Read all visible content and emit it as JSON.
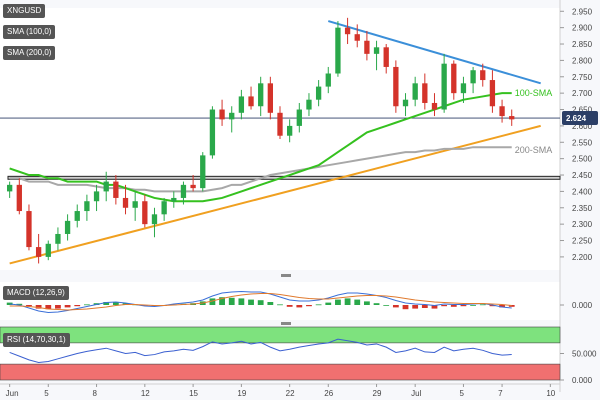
{
  "chart_data": {
    "type": "candlestick",
    "title": "",
    "panels": {
      "price": {
        "ylim": [
          2.16,
          2.96
        ],
        "y_ticks": [
          2.2,
          2.25,
          2.3,
          2.35,
          2.4,
          2.45,
          2.5,
          2.55,
          2.6,
          2.65,
          2.7,
          2.75,
          2.8,
          2.85,
          2.9
        ],
        "y_tick_labels": [
          "2.200",
          "2.250",
          "2.300",
          "2.350",
          "2.400",
          "2.450",
          "2.500",
          "2.550",
          "2.600",
          "2.650",
          "2.700",
          "2.750",
          "2.800",
          "2.850",
          "2.900",
          "2.950"
        ],
        "y_tick_values": [
          2.2,
          2.25,
          2.3,
          2.35,
          2.4,
          2.45,
          2.5,
          2.55,
          2.6,
          2.65,
          2.7,
          2.75,
          2.8,
          2.85,
          2.9,
          2.95
        ],
        "last_price": 2.624,
        "last_price_label": "2.624",
        "support_zone": [
          2.437,
          2.446
        ],
        "candles": [
          [
            2.4,
            2.43,
            2.38,
            2.42
          ],
          [
            2.42,
            2.44,
            2.33,
            2.34
          ],
          [
            2.34,
            2.36,
            2.22,
            2.23
          ],
          [
            2.23,
            2.27,
            2.18,
            2.2
          ],
          [
            2.2,
            2.25,
            2.19,
            2.24
          ],
          [
            2.24,
            2.29,
            2.22,
            2.27
          ],
          [
            2.27,
            2.33,
            2.25,
            2.31
          ],
          [
            2.31,
            2.36,
            2.29,
            2.34
          ],
          [
            2.34,
            2.39,
            2.31,
            2.37
          ],
          [
            2.37,
            2.42,
            2.34,
            2.4
          ],
          [
            2.4,
            2.46,
            2.37,
            2.43
          ],
          [
            2.43,
            2.45,
            2.36,
            2.38
          ],
          [
            2.38,
            2.42,
            2.33,
            2.35
          ],
          [
            2.35,
            2.4,
            2.31,
            2.37
          ],
          [
            2.37,
            2.39,
            2.29,
            2.3
          ],
          [
            2.3,
            2.35,
            2.26,
            2.33
          ],
          [
            2.33,
            2.38,
            2.31,
            2.37
          ],
          [
            2.37,
            2.4,
            2.35,
            2.38
          ],
          [
            2.38,
            2.43,
            2.36,
            2.42
          ],
          [
            2.42,
            2.45,
            2.4,
            2.41
          ],
          [
            2.41,
            2.52,
            2.4,
            2.51
          ],
          [
            2.51,
            2.66,
            2.5,
            2.65
          ],
          [
            2.65,
            2.68,
            2.6,
            2.62
          ],
          [
            2.62,
            2.66,
            2.58,
            2.64
          ],
          [
            2.64,
            2.71,
            2.62,
            2.69
          ],
          [
            2.69,
            2.72,
            2.65,
            2.66
          ],
          [
            2.66,
            2.75,
            2.63,
            2.73
          ],
          [
            2.73,
            2.75,
            2.62,
            2.64
          ],
          [
            2.64,
            2.66,
            2.56,
            2.57
          ],
          [
            2.57,
            2.62,
            2.55,
            2.6
          ],
          [
            2.6,
            2.67,
            2.58,
            2.65
          ],
          [
            2.65,
            2.7,
            2.63,
            2.68
          ],
          [
            2.68,
            2.74,
            2.66,
            2.72
          ],
          [
            2.72,
            2.78,
            2.7,
            2.76
          ],
          [
            2.76,
            2.92,
            2.75,
            2.9
          ],
          [
            2.9,
            2.93,
            2.85,
            2.88
          ],
          [
            2.88,
            2.91,
            2.84,
            2.86
          ],
          [
            2.86,
            2.89,
            2.8,
            2.82
          ],
          [
            2.82,
            2.86,
            2.77,
            2.84
          ],
          [
            2.84,
            2.85,
            2.76,
            2.78
          ],
          [
            2.78,
            2.8,
            2.64,
            2.66
          ],
          [
            2.66,
            2.7,
            2.63,
            2.68
          ],
          [
            2.68,
            2.75,
            2.66,
            2.73
          ],
          [
            2.73,
            2.76,
            2.65,
            2.67
          ],
          [
            2.67,
            2.7,
            2.63,
            2.65
          ],
          [
            2.65,
            2.82,
            2.64,
            2.79
          ],
          [
            2.79,
            2.8,
            2.68,
            2.7
          ],
          [
            2.7,
            2.75,
            2.67,
            2.73
          ],
          [
            2.73,
            2.78,
            2.7,
            2.77
          ],
          [
            2.77,
            2.79,
            2.72,
            2.74
          ],
          [
            2.74,
            2.77,
            2.64,
            2.66
          ],
          [
            2.66,
            2.68,
            2.61,
            2.63
          ],
          [
            2.63,
            2.65,
            2.6,
            2.62
          ]
        ],
        "sma100": [
          2.47,
          2.46,
          2.45,
          2.45,
          2.44,
          2.44,
          2.43,
          2.43,
          2.43,
          2.43,
          2.42,
          2.42,
          2.41,
          2.4,
          2.39,
          2.38,
          2.375,
          2.37,
          2.37,
          2.37,
          2.37,
          2.375,
          2.38,
          2.39,
          2.4,
          2.41,
          2.42,
          2.43,
          2.44,
          2.45,
          2.46,
          2.47,
          2.48,
          2.5,
          2.52,
          2.54,
          2.56,
          2.58,
          2.59,
          2.6,
          2.61,
          2.62,
          2.63,
          2.64,
          2.65,
          2.66,
          2.67,
          2.68,
          2.685,
          2.69,
          2.695,
          2.7,
          2.7
        ],
        "sma200": [
          2.44,
          2.44,
          2.43,
          2.43,
          2.43,
          2.42,
          2.42,
          2.42,
          2.42,
          2.415,
          2.41,
          2.41,
          2.41,
          2.405,
          2.405,
          2.4,
          2.4,
          2.4,
          2.4,
          2.4,
          2.4,
          2.405,
          2.41,
          2.42,
          2.42,
          2.43,
          2.44,
          2.45,
          2.455,
          2.46,
          2.465,
          2.47,
          2.475,
          2.48,
          2.485,
          2.49,
          2.495,
          2.5,
          2.505,
          2.51,
          2.515,
          2.52,
          2.52,
          2.525,
          2.525,
          2.53,
          2.53,
          2.53,
          2.535,
          2.535,
          2.535,
          2.535,
          2.535
        ],
        "trendlines": [
          {
            "name": "resistance",
            "color": "#3b8fd9",
            "from": [
              34,
              2.92
            ],
            "to": [
              56,
              2.73
            ]
          },
          {
            "name": "support",
            "color": "#f0a020",
            "from": [
              1,
              2.18
            ],
            "to": [
              56,
              2.6
            ]
          }
        ],
        "labels": {
          "sma100": "100-SMA",
          "sma200": "200-SMA"
        }
      },
      "macd": {
        "label": "MACD (12,26,9)",
        "y_tick_label": "0.000",
        "histogram": [
          0.2,
          0.1,
          -0.1,
          -0.3,
          -0.35,
          -0.3,
          -0.2,
          -0.1,
          0.05,
          0.15,
          0.25,
          0.25,
          0.15,
          0.05,
          -0.05,
          -0.1,
          -0.05,
          0.05,
          0.1,
          0.15,
          0.3,
          0.55,
          0.65,
          0.6,
          0.55,
          0.45,
          0.4,
          0.25,
          0.05,
          -0.15,
          -0.2,
          -0.1,
          0.05,
          0.2,
          0.45,
          0.55,
          0.45,
          0.3,
          0.15,
          0.0,
          -0.2,
          -0.35,
          -0.3,
          -0.25,
          -0.3,
          -0.1,
          -0.15,
          -0.1,
          0.0,
          0.05,
          -0.1,
          -0.2,
          -0.15
        ],
        "macd_line": [
          0.1,
          0.0,
          -0.3,
          -0.6,
          -0.75,
          -0.7,
          -0.55,
          -0.35,
          -0.15,
          0.05,
          0.25,
          0.3,
          0.2,
          0.05,
          -0.1,
          -0.15,
          -0.05,
          0.1,
          0.2,
          0.3,
          0.5,
          0.9,
          1.2,
          1.3,
          1.35,
          1.3,
          1.3,
          1.1,
          0.8,
          0.5,
          0.4,
          0.4,
          0.5,
          0.7,
          1.0,
          1.2,
          1.2,
          1.1,
          0.95,
          0.75,
          0.45,
          0.2,
          0.1,
          0.05,
          -0.05,
          0.1,
          0.05,
          0.05,
          0.1,
          0.15,
          0.0,
          -0.2,
          -0.3
        ],
        "signal_line": [
          -0.1,
          -0.1,
          -0.15,
          -0.25,
          -0.4,
          -0.45,
          -0.5,
          -0.45,
          -0.4,
          -0.3,
          -0.2,
          -0.05,
          0.05,
          0.05,
          0.0,
          -0.05,
          -0.05,
          0.0,
          0.05,
          0.1,
          0.2,
          0.4,
          0.65,
          0.85,
          1.0,
          1.1,
          1.15,
          1.15,
          1.05,
          0.9,
          0.75,
          0.65,
          0.6,
          0.6,
          0.7,
          0.8,
          0.9,
          0.95,
          0.95,
          0.9,
          0.8,
          0.65,
          0.5,
          0.4,
          0.3,
          0.25,
          0.2,
          0.15,
          0.15,
          0.15,
          0.1,
          0.05,
          -0.05
        ]
      },
      "rsi": {
        "label": "RSI (14,70,30,1)",
        "y_tick_labels": [
          "50.000",
          "0.000"
        ],
        "y_tick_values": [
          50,
          0
        ],
        "overbought": 70,
        "oversold": 30,
        "values": [
          52,
          45,
          38,
          33,
          35,
          40,
          45,
          50,
          54,
          57,
          60,
          55,
          50,
          52,
          46,
          48,
          53,
          55,
          58,
          56,
          63,
          72,
          68,
          70,
          73,
          68,
          71,
          62,
          55,
          58,
          62,
          65,
          68,
          70,
          77,
          74,
          71,
          66,
          68,
          62,
          52,
          55,
          60,
          53,
          52,
          62,
          55,
          58,
          60,
          56,
          50,
          47,
          48
        ]
      }
    },
    "x_tick_labels": [
      "Jun",
      "5",
      "8",
      "12",
      "15",
      "19",
      "22",
      "26",
      "29",
      "Jul",
      "5",
      "7",
      "10"
    ],
    "x_tick_index": [
      1,
      5,
      10,
      15,
      20,
      25,
      30,
      34,
      39,
      43,
      48,
      52,
      57
    ],
    "n_bars": 53,
    "x_max": 58
  },
  "panel_tags": {
    "symbol": "XNGUSD",
    "sma100_tag": "SMA (100,0)",
    "sma200_tag": "SMA (200,0)",
    "macd_tag": "MACD (12,26,9)",
    "rsi_tag": "RSI (14,70,30,1)"
  },
  "colors": {
    "up": "#2aa84a",
    "down": "#d4332a",
    "sma100": "#35c11f",
    "sma200": "#a8a8a8",
    "resistance": "#3b8fd9",
    "support": "#f0a020",
    "macd_line": "#3a6fd8",
    "signal_line": "#e07a2e",
    "rsi_line": "#3a5fd0",
    "rsi_ob": "#7ee27e",
    "rsi_os": "#f07070"
  }
}
